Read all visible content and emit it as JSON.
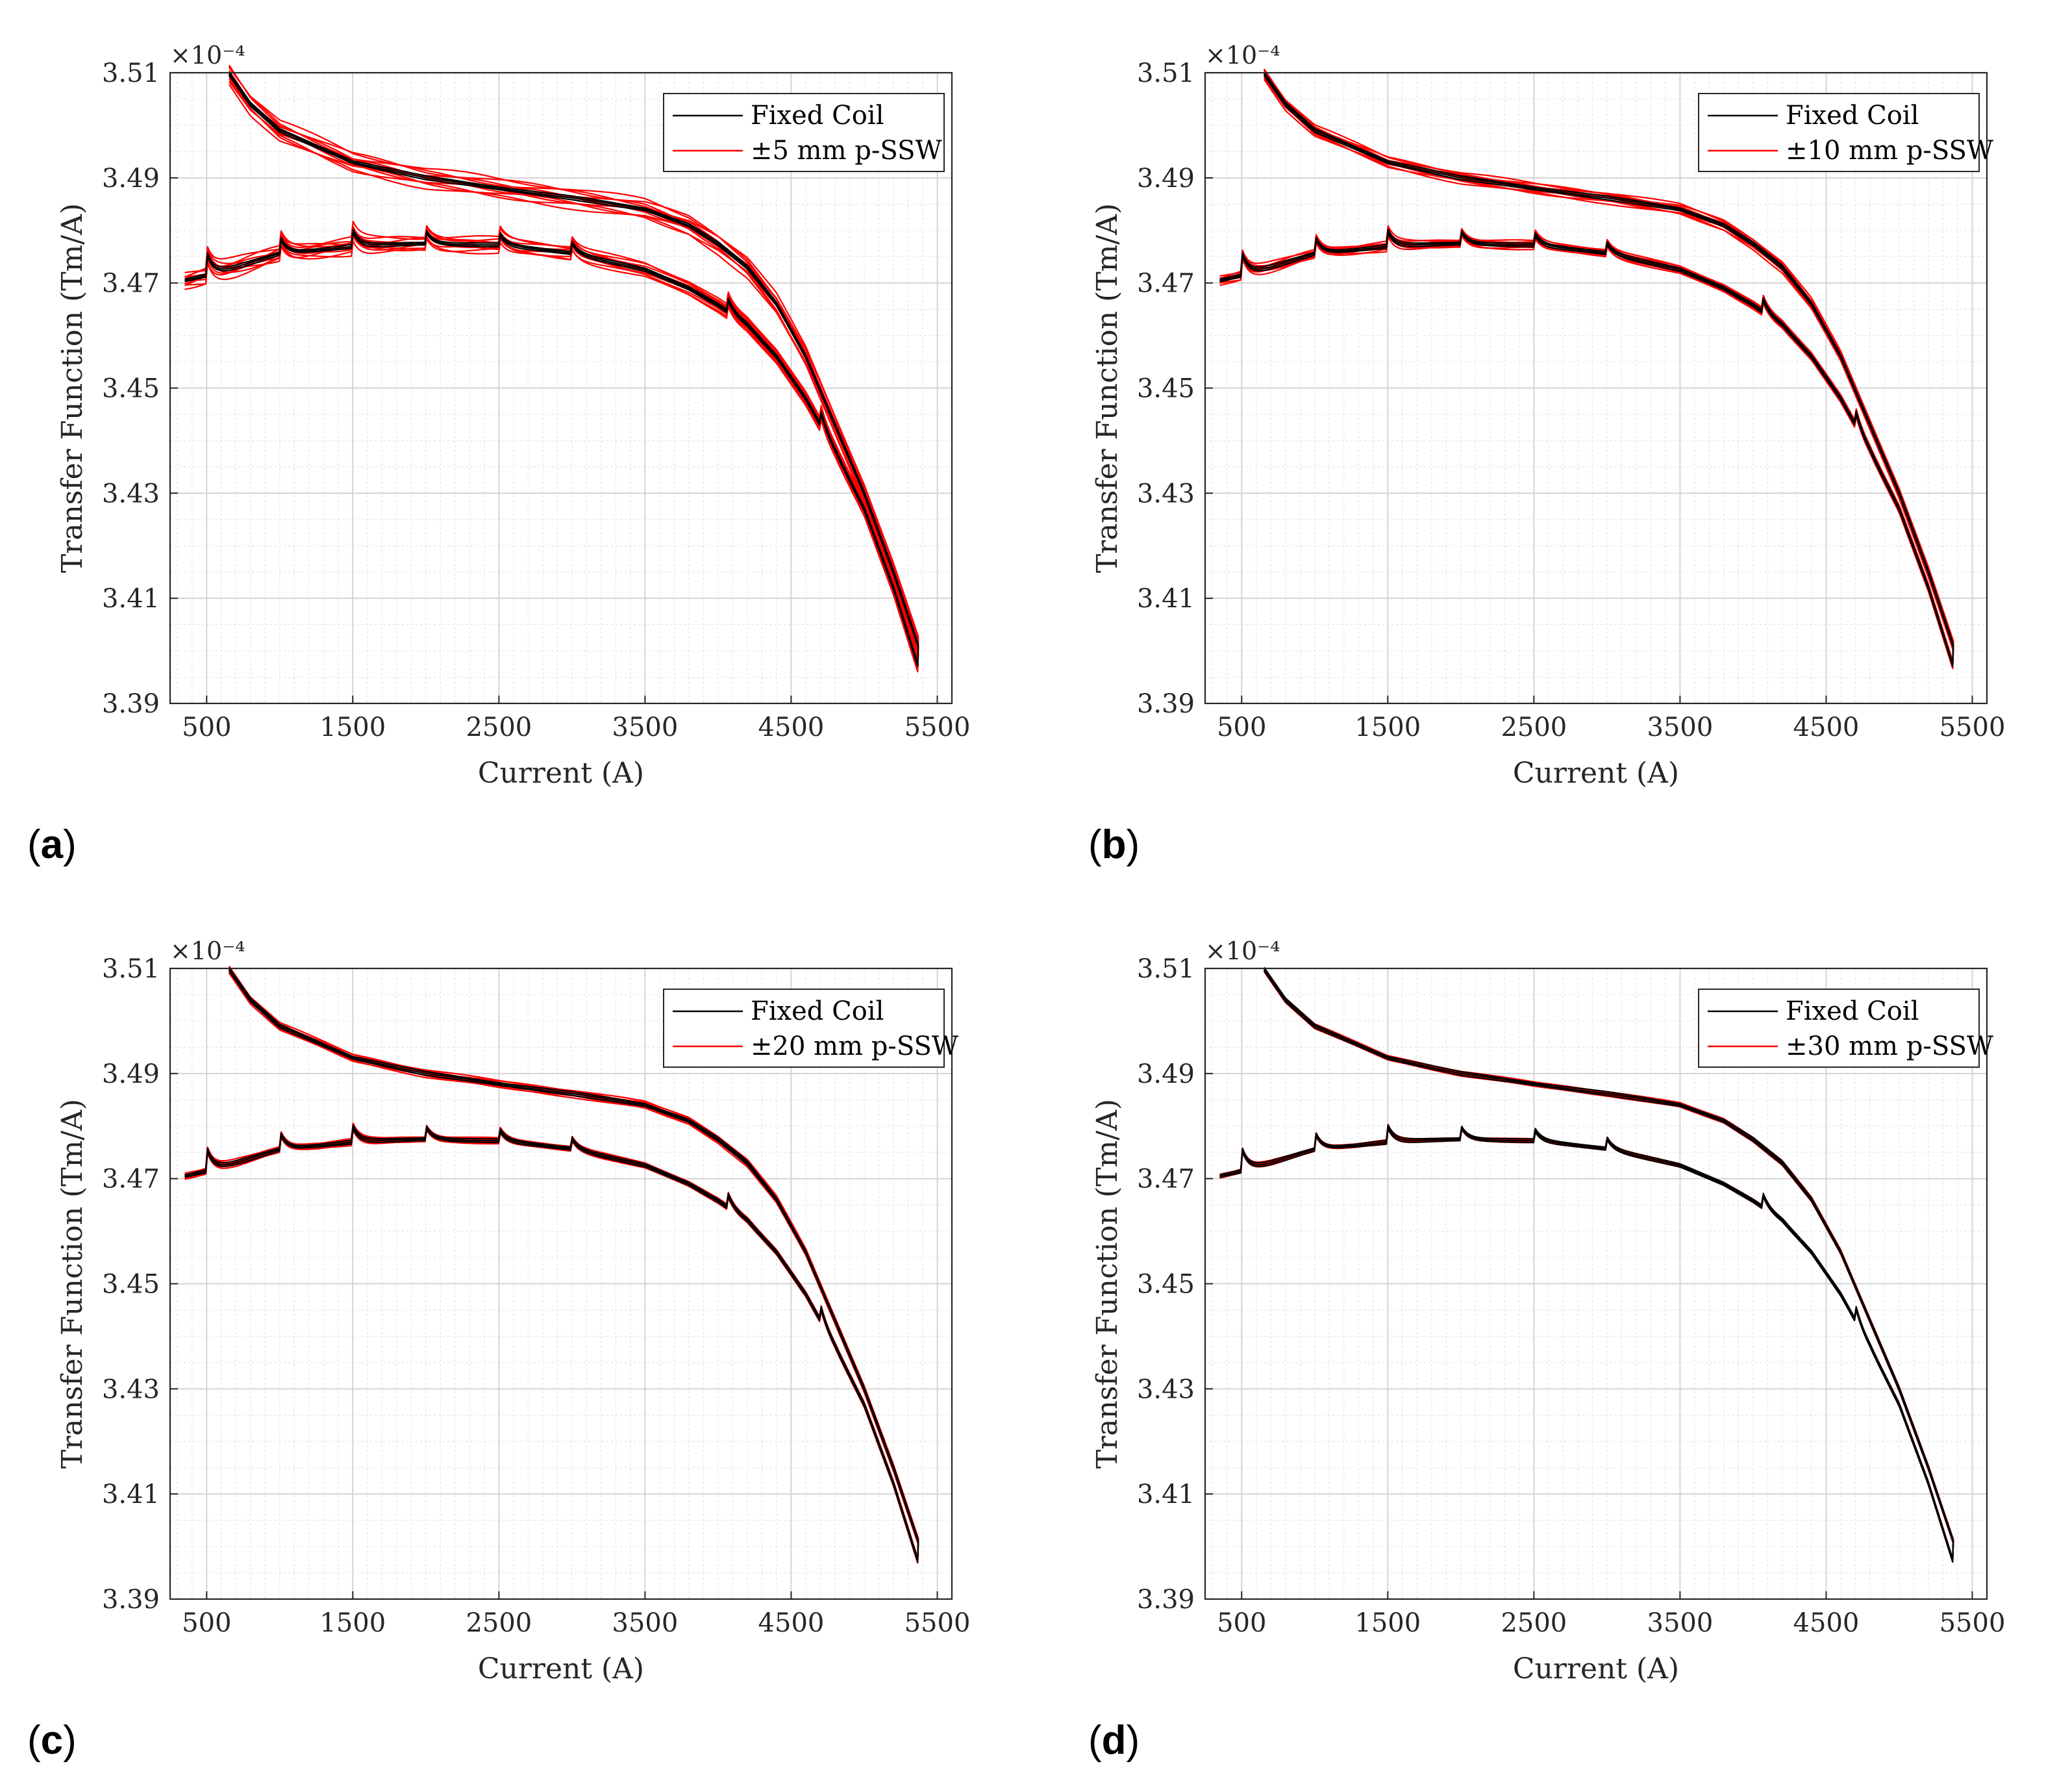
{
  "chart_data": [
    {
      "panel_label": "a",
      "type": "line",
      "xlabel": "Current (A)",
      "ylabel": "Transfer Function (Tm/A)",
      "y_multiplier": "×10⁻⁴",
      "xlim": [
        250,
        5600
      ],
      "ylim": [
        3.39,
        3.51
      ],
      "x_ticks": [
        "500",
        "1500",
        "2500",
        "3500",
        "4500",
        "5500"
      ],
      "y_ticks": [
        "3.39",
        "3.41",
        "3.43",
        "3.45",
        "3.47",
        "3.49",
        "3.51"
      ],
      "grid": true,
      "legend_position": "top-right",
      "series": [
        {
          "name": "Fixed Coil",
          "color": "#000000"
        },
        {
          "name": "±5 mm p-SSW",
          "color": "#ff0000",
          "spread": 0.0022
        }
      ]
    },
    {
      "panel_label": "b",
      "type": "line",
      "xlabel": "Current (A)",
      "ylabel": "Transfer Function (Tm/A)",
      "y_multiplier": "×10⁻⁴",
      "xlim": [
        250,
        5600
      ],
      "ylim": [
        3.39,
        3.51
      ],
      "x_ticks": [
        "500",
        "1500",
        "2500",
        "3500",
        "4500",
        "5500"
      ],
      "y_ticks": [
        "3.39",
        "3.41",
        "3.43",
        "3.45",
        "3.47",
        "3.49",
        "3.51"
      ],
      "grid": true,
      "legend_position": "top-right",
      "series": [
        {
          "name": "Fixed Coil",
          "color": "#000000"
        },
        {
          "name": "±10 mm p-SSW",
          "color": "#ff0000",
          "spread": 0.0012
        }
      ]
    },
    {
      "panel_label": "c",
      "type": "line",
      "xlabel": "Current (A)",
      "ylabel": "Transfer Function (Tm/A)",
      "y_multiplier": "×10⁻⁴",
      "xlim": [
        250,
        5600
      ],
      "ylim": [
        3.39,
        3.51
      ],
      "x_ticks": [
        "500",
        "1500",
        "2500",
        "3500",
        "4500",
        "5500"
      ],
      "y_ticks": [
        "3.39",
        "3.41",
        "3.43",
        "3.45",
        "3.47",
        "3.49",
        "3.51"
      ],
      "grid": true,
      "legend_position": "top-right",
      "series": [
        {
          "name": "Fixed Coil",
          "color": "#000000"
        },
        {
          "name": "±20 mm p-SSW",
          "color": "#ff0000",
          "spread": 0.0008
        }
      ]
    },
    {
      "panel_label": "d",
      "type": "line",
      "xlabel": "Current (A)",
      "ylabel": "Transfer Function (Tm/A)",
      "y_multiplier": "×10⁻⁴",
      "xlim": [
        250,
        5600
      ],
      "ylim": [
        3.39,
        3.51
      ],
      "x_ticks": [
        "500",
        "1500",
        "2500",
        "3500",
        "4500",
        "5500"
      ],
      "y_ticks": [
        "3.39",
        "3.41",
        "3.43",
        "3.45",
        "3.47",
        "3.49",
        "3.51"
      ],
      "grid": true,
      "legend_position": "top-right",
      "series": [
        {
          "name": "Fixed Coil",
          "color": "#000000"
        },
        {
          "name": "±30 mm p-SSW",
          "color": "#ff0000",
          "spread": 0.0005
        }
      ]
    }
  ],
  "curve_shape": {
    "up_branch": {
      "x": [
        350,
        500,
        700,
        1000,
        1500,
        2000,
        2500,
        3000,
        3500,
        3800,
        4000,
        4200,
        4400,
        4600,
        4800,
        5000,
        5200,
        5370
      ],
      "y": [
        3.4705,
        3.4715,
        3.473,
        3.4755,
        3.477,
        3.4775,
        3.4772,
        3.4757,
        3.4725,
        3.469,
        3.4658,
        3.462,
        3.456,
        3.448,
        3.438,
        3.427,
        3.412,
        3.397
      ]
    },
    "down_branch": {
      "x": [
        5370,
        5200,
        5000,
        4800,
        4600,
        4400,
        4200,
        4000,
        3800,
        3500,
        3000,
        2500,
        2000,
        1500,
        1000,
        800,
        650
      ],
      "y": [
        3.401,
        3.415,
        3.43,
        3.443,
        3.456,
        3.466,
        3.473,
        3.4775,
        3.481,
        3.484,
        3.4862,
        3.488,
        3.49,
        3.493,
        3.499,
        3.504,
        3.51
      ]
    },
    "spike_currents": [
      500,
      1000,
      1500,
      2000,
      2500,
      3000,
      4060,
      4700
    ],
    "spike_heights": [
      0.0045,
      0.0035,
      0.003,
      0.0025,
      0.0025,
      0.002,
      0.003,
      0.003
    ]
  }
}
